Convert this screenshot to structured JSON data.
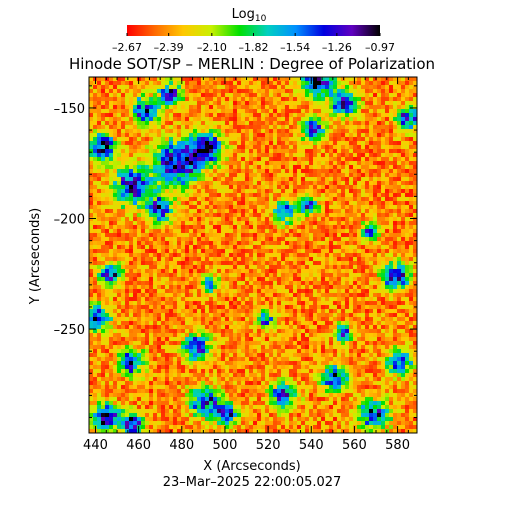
{
  "chart_data": {
    "type": "heatmap",
    "title": "Hinode SOT/SP – MERLIN : Degree of Polarization",
    "xlabel": "X (Arcseconds)",
    "ylabel": "Y (Arcseconds)",
    "timestamp": "23–Mar–2025 22:00:05.027",
    "xlim": [
      437,
      589
    ],
    "ylim": [
      -297,
      -136
    ],
    "x_ticks": [
      440,
      460,
      480,
      500,
      520,
      540,
      560,
      580
    ],
    "x_tick_labels": [
      "440",
      "460",
      "480",
      "500",
      "520",
      "540",
      "560",
      "580"
    ],
    "y_ticks": [
      -150,
      -200,
      -250
    ],
    "y_tick_labels": [
      "–150",
      "–200",
      "–250"
    ],
    "colorbar": {
      "label_base": "Log",
      "label_sub": "10",
      "min": -2.67,
      "max": -0.97,
      "ticks": [
        -2.67,
        -2.39,
        -2.1,
        -1.82,
        -1.54,
        -1.26,
        -0.97
      ],
      "tick_labels": [
        "–2.67",
        "–2.39",
        "–2.10",
        "–1.82",
        "–1.54",
        "–1.26",
        "–0.97"
      ],
      "colors": [
        "#ff0000",
        "#ff6a00",
        "#ffc800",
        "#c8f000",
        "#00e000",
        "#00d0c0",
        "#0090ff",
        "#0000e0",
        "#6000c0",
        "#000000"
      ]
    },
    "patches": [
      {
        "x": 457,
        "y": -185,
        "r": 9,
        "level": 0.72
      },
      {
        "x": 478,
        "y": -175,
        "r": 10,
        "level": 0.86
      },
      {
        "x": 492,
        "y": -168,
        "r": 7,
        "level": 0.82
      },
      {
        "x": 470,
        "y": -196,
        "r": 6,
        "level": 0.68
      },
      {
        "x": 443,
        "y": -168,
        "r": 6,
        "level": 0.8
      },
      {
        "x": 463,
        "y": -151,
        "r": 6,
        "level": 0.72
      },
      {
        "x": 475,
        "y": -144,
        "r": 5,
        "level": 0.75
      },
      {
        "x": 543,
        "y": -138,
        "r": 7,
        "level": 0.8
      },
      {
        "x": 555,
        "y": -148,
        "r": 6,
        "level": 0.75
      },
      {
        "x": 585,
        "y": -155,
        "r": 5,
        "level": 0.8
      },
      {
        "x": 541,
        "y": -160,
        "r": 5,
        "level": 0.7
      },
      {
        "x": 528,
        "y": -197,
        "r": 5,
        "level": 0.72
      },
      {
        "x": 539,
        "y": -194,
        "r": 4,
        "level": 0.7
      },
      {
        "x": 579,
        "y": -226,
        "r": 6,
        "level": 0.82
      },
      {
        "x": 581,
        "y": -265,
        "r": 6,
        "level": 0.62
      },
      {
        "x": 441,
        "y": -245,
        "r": 6,
        "level": 0.72
      },
      {
        "x": 447,
        "y": -225,
        "r": 5,
        "level": 0.68
      },
      {
        "x": 457,
        "y": -265,
        "r": 6,
        "level": 0.72
      },
      {
        "x": 445,
        "y": -290,
        "r": 6,
        "level": 0.8
      },
      {
        "x": 457,
        "y": -293,
        "r": 5,
        "level": 0.78
      },
      {
        "x": 487,
        "y": -258,
        "r": 6,
        "level": 0.72
      },
      {
        "x": 491,
        "y": -283,
        "r": 7,
        "level": 0.72
      },
      {
        "x": 501,
        "y": -288,
        "r": 5,
        "level": 0.7
      },
      {
        "x": 493,
        "y": -230,
        "r": 4,
        "level": 0.62
      },
      {
        "x": 527,
        "y": -280,
        "r": 6,
        "level": 0.68
      },
      {
        "x": 551,
        "y": -272,
        "r": 6,
        "level": 0.66
      },
      {
        "x": 569,
        "y": -289,
        "r": 7,
        "level": 0.72
      },
      {
        "x": 555,
        "y": -252,
        "r": 4,
        "level": 0.6
      },
      {
        "x": 519,
        "y": -246,
        "r": 4,
        "level": 0.58
      },
      {
        "x": 567,
        "y": -206,
        "r": 4,
        "level": 0.6
      }
    ]
  }
}
